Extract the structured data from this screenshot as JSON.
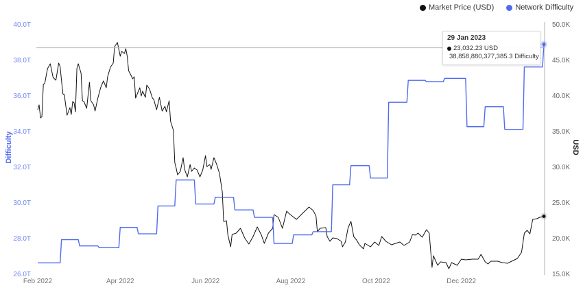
{
  "legend": [
    {
      "label": "Market Price (USD)",
      "color": "#111111"
    },
    {
      "label": "Network Difficulty",
      "color": "#4f6bef"
    }
  ],
  "tooltip": {
    "date": "29 Jan 2023",
    "price_text": "23,032.23 USD",
    "difficulty_text": "38,858,880,377,385.3 Difficulty"
  },
  "chart_data": {
    "type": "line",
    "x_range": [
      "2022-02-01",
      "2023-01-29"
    ],
    "x_ticks": [
      {
        "date": "2022-02-01",
        "label": "Feb 2022"
      },
      {
        "date": "2022-04-01",
        "label": "Apr 2022"
      },
      {
        "date": "2022-06-01",
        "label": "Jun 2022"
      },
      {
        "date": "2022-08-01",
        "label": "Aug 2022"
      },
      {
        "date": "2022-10-01",
        "label": "Oct 2022"
      },
      {
        "date": "2022-12-01",
        "label": "Dec 2022"
      }
    ],
    "y_left": {
      "label": "Difficulty",
      "range": [
        26,
        40
      ],
      "ticks": [
        "26.0T",
        "28.0T",
        "30.0T",
        "32.0T",
        "34.0T",
        "36.0T",
        "38.0T",
        "40.0T"
      ],
      "color": "#4f6bef"
    },
    "y_right": {
      "label": "USD",
      "range": [
        15000,
        50000
      ],
      "ticks": [
        "15.0K",
        "20.0K",
        "25.0K",
        "30.0K",
        "35.0K",
        "40.0K",
        "45.0K",
        "50.0K"
      ]
    },
    "grid": false,
    "legend_position": "top-right",
    "series": [
      {
        "name": "Market Price (USD)",
        "axis": "right",
        "color": "#111111",
        "unit": "USD",
        "points": [
          [
            "2022-02-01",
            37980
          ],
          [
            "2022-02-02",
            38650
          ],
          [
            "2022-02-03",
            36830
          ],
          [
            "2022-02-04",
            37020
          ],
          [
            "2022-02-05",
            41540
          ],
          [
            "2022-02-06",
            41630
          ],
          [
            "2022-02-08",
            43750
          ],
          [
            "2022-02-10",
            44420
          ],
          [
            "2022-02-12",
            42500
          ],
          [
            "2022-02-14",
            42120
          ],
          [
            "2022-02-16",
            44520
          ],
          [
            "2022-02-17",
            44040
          ],
          [
            "2022-02-19",
            40190
          ],
          [
            "2022-02-20",
            40100
          ],
          [
            "2022-02-22",
            37210
          ],
          [
            "2022-02-24",
            38270
          ],
          [
            "2022-02-25",
            37310
          ],
          [
            "2022-02-26",
            39130
          ],
          [
            "2022-02-27",
            38940
          ],
          [
            "2022-02-28",
            37690
          ],
          [
            "2022-03-01",
            43750
          ],
          [
            "2022-03-02",
            44420
          ],
          [
            "2022-03-04",
            43080
          ],
          [
            "2022-03-05",
            39230
          ],
          [
            "2022-03-06",
            39130
          ],
          [
            "2022-03-08",
            38170
          ],
          [
            "2022-03-10",
            41830
          ],
          [
            "2022-03-11",
            39230
          ],
          [
            "2022-03-13",
            38650
          ],
          [
            "2022-03-14",
            37790
          ],
          [
            "2022-03-16",
            39620
          ],
          [
            "2022-03-18",
            41060
          ],
          [
            "2022-03-20",
            42020
          ],
          [
            "2022-03-22",
            41060
          ],
          [
            "2022-03-23",
            42600
          ],
          [
            "2022-03-25",
            43940
          ],
          [
            "2022-03-27",
            44520
          ],
          [
            "2022-03-28",
            46830
          ],
          [
            "2022-03-30",
            47400
          ],
          [
            "2022-04-01",
            45480
          ],
          [
            "2022-04-02",
            46150
          ],
          [
            "2022-04-04",
            45870
          ],
          [
            "2022-04-05",
            46540
          ],
          [
            "2022-04-06",
            45480
          ],
          [
            "2022-04-07",
            43460
          ],
          [
            "2022-04-10",
            42310
          ],
          [
            "2022-04-11",
            42600
          ],
          [
            "2022-04-12",
            39620
          ],
          [
            "2022-04-15",
            41060
          ],
          [
            "2022-04-16",
            39900
          ],
          [
            "2022-04-17",
            40580
          ],
          [
            "2022-04-19",
            39710
          ],
          [
            "2022-04-20",
            41440
          ],
          [
            "2022-04-22",
            40870
          ],
          [
            "2022-04-24",
            39620
          ],
          [
            "2022-04-25",
            39420
          ],
          [
            "2022-04-27",
            37980
          ],
          [
            "2022-04-29",
            39710
          ],
          [
            "2022-05-01",
            37790
          ],
          [
            "2022-05-03",
            38460
          ],
          [
            "2022-05-04",
            37690
          ],
          [
            "2022-05-06",
            39230
          ],
          [
            "2022-05-07",
            36350
          ],
          [
            "2022-05-09",
            35100
          ],
          [
            "2022-05-10",
            30580
          ],
          [
            "2022-05-11",
            29810
          ],
          [
            "2022-05-12",
            28850
          ],
          [
            "2022-05-14",
            29330
          ],
          [
            "2022-05-16",
            31250
          ],
          [
            "2022-05-17",
            29620
          ],
          [
            "2022-05-19",
            28560
          ],
          [
            "2022-05-21",
            30290
          ],
          [
            "2022-05-22",
            29330
          ],
          [
            "2022-05-24",
            29810
          ],
          [
            "2022-05-26",
            29520
          ],
          [
            "2022-05-28",
            28560
          ],
          [
            "2022-05-30",
            29520
          ],
          [
            "2022-06-01",
            31540
          ],
          [
            "2022-06-02",
            30000
          ],
          [
            "2022-06-04",
            30290
          ],
          [
            "2022-06-05",
            29620
          ],
          [
            "2022-06-07",
            31250
          ],
          [
            "2022-06-09",
            30290
          ],
          [
            "2022-06-11",
            29040
          ],
          [
            "2022-06-13",
            26440
          ],
          [
            "2022-06-14",
            22310
          ],
          [
            "2022-06-16",
            22400
          ],
          [
            "2022-06-17",
            20380
          ],
          [
            "2022-06-19",
            18750
          ],
          [
            "2022-06-20",
            20480
          ],
          [
            "2022-06-23",
            20670
          ],
          [
            "2022-06-26",
            21350
          ],
          [
            "2022-06-29",
            20000
          ],
          [
            "2022-07-02",
            19130
          ],
          [
            "2022-07-05",
            20190
          ],
          [
            "2022-07-08",
            21540
          ],
          [
            "2022-07-11",
            20380
          ],
          [
            "2022-07-13",
            19230
          ],
          [
            "2022-07-16",
            20670
          ],
          [
            "2022-07-19",
            21350
          ],
          [
            "2022-07-20",
            23270
          ],
          [
            "2022-07-23",
            22880
          ],
          [
            "2022-07-26",
            21350
          ],
          [
            "2022-07-29",
            23750
          ],
          [
            "2022-07-31",
            23370
          ],
          [
            "2022-08-05",
            22600
          ],
          [
            "2022-08-10",
            23560
          ],
          [
            "2022-08-14",
            24330
          ],
          [
            "2022-08-17",
            23850
          ],
          [
            "2022-08-19",
            23080
          ],
          [
            "2022-08-20",
            20870
          ],
          [
            "2022-08-22",
            21350
          ],
          [
            "2022-08-26",
            21440
          ],
          [
            "2022-08-27",
            20190
          ],
          [
            "2022-08-29",
            19520
          ],
          [
            "2022-08-31",
            20000
          ],
          [
            "2022-09-03",
            19900
          ],
          [
            "2022-09-06",
            19520
          ],
          [
            "2022-09-07",
            18750
          ],
          [
            "2022-09-09",
            19420
          ],
          [
            "2022-09-11",
            21440
          ],
          [
            "2022-09-13",
            22310
          ],
          [
            "2022-09-15",
            20190
          ],
          [
            "2022-09-17",
            19710
          ],
          [
            "2022-09-19",
            19040
          ],
          [
            "2022-09-22",
            18460
          ],
          [
            "2022-09-23",
            19230
          ],
          [
            "2022-09-27",
            18750
          ],
          [
            "2022-09-30",
            19420
          ],
          [
            "2022-10-03",
            18940
          ],
          [
            "2022-10-05",
            20190
          ],
          [
            "2022-10-08",
            19520
          ],
          [
            "2022-10-12",
            19040
          ],
          [
            "2022-10-15",
            19230
          ],
          [
            "2022-10-18",
            19420
          ],
          [
            "2022-10-21",
            18940
          ],
          [
            "2022-10-25",
            19420
          ],
          [
            "2022-10-27",
            20480
          ],
          [
            "2022-10-29",
            20380
          ],
          [
            "2022-10-31",
            20670
          ],
          [
            "2022-11-03",
            20100
          ],
          [
            "2022-11-06",
            21150
          ],
          [
            "2022-11-08",
            20670
          ],
          [
            "2022-11-10",
            15870
          ],
          [
            "2022-11-11",
            17500
          ],
          [
            "2022-11-14",
            16150
          ],
          [
            "2022-11-16",
            16630
          ],
          [
            "2022-11-20",
            16540
          ],
          [
            "2022-11-22",
            15670
          ],
          [
            "2022-11-24",
            16540
          ],
          [
            "2022-11-28",
            16150
          ],
          [
            "2022-12-01",
            17020
          ],
          [
            "2022-12-04",
            16920
          ],
          [
            "2022-12-09",
            17020
          ],
          [
            "2022-12-13",
            17020
          ],
          [
            "2022-12-15",
            17690
          ],
          [
            "2022-12-18",
            16630
          ],
          [
            "2022-12-20",
            16350
          ],
          [
            "2022-12-22",
            16730
          ],
          [
            "2022-12-27",
            16730
          ],
          [
            "2022-12-30",
            16540
          ],
          [
            "2023-01-03",
            16440
          ],
          [
            "2023-01-08",
            16920
          ],
          [
            "2023-01-10",
            17120
          ],
          [
            "2023-01-13",
            17980
          ],
          [
            "2023-01-15",
            20670
          ],
          [
            "2023-01-17",
            21060
          ],
          [
            "2023-01-19",
            20580
          ],
          [
            "2023-01-21",
            22600
          ],
          [
            "2023-01-24",
            22690
          ],
          [
            "2023-01-26",
            22880
          ],
          [
            "2023-01-28",
            22980
          ],
          [
            "2023-01-29",
            23032.23
          ]
        ]
      },
      {
        "name": "Network Difficulty",
        "axis": "left",
        "color": "#4f6bef",
        "unit": "T",
        "step": true,
        "points": [
          [
            "2022-02-01",
            26.6
          ],
          [
            "2022-02-18",
            27.9
          ],
          [
            "2022-03-03",
            27.55
          ],
          [
            "2022-03-17",
            27.45
          ],
          [
            "2022-04-01",
            28.59
          ],
          [
            "2022-04-14",
            28.23
          ],
          [
            "2022-04-28",
            29.79
          ],
          [
            "2022-05-11",
            31.25
          ],
          [
            "2022-05-25",
            29.9
          ],
          [
            "2022-06-08",
            30.28
          ],
          [
            "2022-06-22",
            29.57
          ],
          [
            "2022-07-06",
            29.15
          ],
          [
            "2022-07-20",
            27.69
          ],
          [
            "2022-08-03",
            28.17
          ],
          [
            "2022-08-17",
            28.35
          ],
          [
            "2022-08-31",
            30.98
          ],
          [
            "2022-09-13",
            32.05
          ],
          [
            "2022-09-27",
            31.36
          ],
          [
            "2022-10-10",
            35.61
          ],
          [
            "2022-10-24",
            36.84
          ],
          [
            "2022-11-06",
            36.76
          ],
          [
            "2022-11-19",
            36.95
          ],
          [
            "2022-12-05",
            34.24
          ],
          [
            "2022-12-18",
            35.36
          ],
          [
            "2023-01-01",
            34.09
          ],
          [
            "2023-01-15",
            37.59
          ],
          [
            "2023-01-29",
            38.86
          ]
        ]
      }
    ],
    "hover": {
      "date": "2023-01-29",
      "price": 23032.23,
      "difficulty_t": 38.8589
    }
  }
}
